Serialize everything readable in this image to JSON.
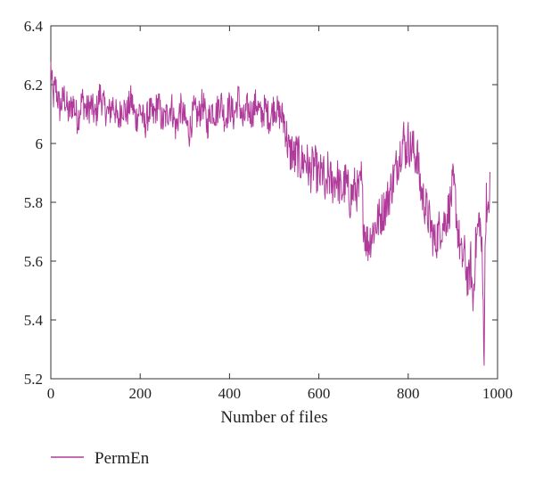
{
  "chart_data": {
    "type": "line",
    "xlabel": "Number of files",
    "ylabel": "",
    "xlim": [
      0,
      1000
    ],
    "ylim": [
      5.2,
      6.4
    ],
    "xticks": [
      0,
      200,
      400,
      600,
      800,
      1000
    ],
    "yticks": [
      5.2,
      5.4,
      5.6,
      5.8,
      6,
      6.2,
      6.4
    ],
    "xtick_labels": [
      "0",
      "200",
      "400",
      "600",
      "800",
      "1000"
    ],
    "ytick_labels": [
      "5.2",
      "5.4",
      "5.6",
      "5.8",
      "6",
      "6.2",
      "6.4"
    ],
    "grid": false,
    "legend_position": "bottom-left",
    "series": [
      {
        "name": "PermEn",
        "color": "#b03a9a",
        "x": [
          0,
          5,
          10,
          20,
          30,
          40,
          50,
          60,
          70,
          80,
          90,
          100,
          110,
          120,
          130,
          140,
          150,
          160,
          170,
          180,
          190,
          200,
          210,
          220,
          230,
          240,
          250,
          260,
          270,
          280,
          290,
          300,
          310,
          320,
          330,
          340,
          350,
          360,
          370,
          380,
          390,
          400,
          410,
          420,
          430,
          440,
          450,
          460,
          470,
          480,
          490,
          500,
          510,
          520,
          525,
          530,
          535,
          540,
          545,
          550,
          560,
          570,
          580,
          590,
          600,
          610,
          615,
          620,
          630,
          640,
          650,
          660,
          670,
          680,
          690,
          695,
          700,
          705,
          710,
          720,
          730,
          740,
          750,
          760,
          770,
          780,
          785,
          790,
          795,
          800,
          805,
          810,
          815,
          820,
          825,
          830,
          840,
          850,
          855,
          860,
          870,
          880,
          890,
          895,
          900,
          905,
          910,
          915,
          920,
          925,
          930,
          935,
          940,
          945,
          950,
          955,
          960,
          965,
          968,
          970,
          972,
          975,
          978,
          980,
          983
        ],
        "y": [
          6.26,
          6.15,
          6.2,
          6.12,
          6.16,
          6.1,
          6.14,
          6.08,
          6.15,
          6.11,
          6.13,
          6.09,
          6.17,
          6.12,
          6.1,
          6.14,
          6.07,
          6.13,
          6.1,
          6.15,
          6.08,
          6.12,
          6.06,
          6.11,
          6.09,
          6.14,
          6.07,
          6.1,
          6.13,
          6.05,
          6.12,
          6.08,
          6.04,
          6.11,
          6.09,
          6.14,
          6.06,
          6.12,
          6.1,
          6.15,
          6.08,
          6.13,
          6.09,
          6.16,
          6.07,
          6.12,
          6.1,
          6.14,
          6.09,
          6.12,
          6.08,
          6.13,
          6.1,
          6.09,
          6.06,
          6.0,
          5.96,
          5.98,
          5.94,
          5.97,
          5.93,
          5.95,
          5.9,
          5.93,
          5.88,
          5.91,
          5.8,
          5.9,
          5.86,
          5.89,
          5.83,
          5.87,
          5.81,
          5.85,
          5.83,
          5.88,
          5.74,
          5.68,
          5.66,
          5.7,
          5.73,
          5.76,
          5.79,
          5.84,
          5.9,
          5.96,
          5.99,
          6.02,
          5.97,
          6.01,
          5.98,
          5.99,
          5.95,
          5.97,
          5.88,
          5.83,
          5.78,
          5.72,
          5.69,
          5.66,
          5.71,
          5.73,
          5.77,
          5.8,
          5.86,
          5.82,
          5.72,
          5.66,
          5.6,
          5.63,
          5.57,
          5.52,
          5.6,
          5.45,
          5.63,
          5.7,
          5.75,
          5.62,
          5.44,
          5.29,
          5.6,
          5.85,
          5.72,
          5.78,
          5.85
        ]
      }
    ]
  }
}
